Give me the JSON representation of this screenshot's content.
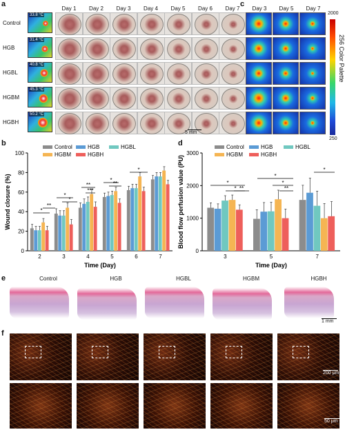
{
  "panels": {
    "a": "a",
    "b": "b",
    "c": "c",
    "d": "d",
    "e": "e",
    "f": "f"
  },
  "groups": [
    "Control",
    "HGB",
    "HGBL",
    "HGBM",
    "HGBH"
  ],
  "temps": [
    "33.8 °C",
    "31.4 °C",
    "40.8 °C",
    "45.3 °C",
    "50.2 °C"
  ],
  "days": [
    "Day 1",
    "Day 2",
    "Day 3",
    "Day 4",
    "Day 5",
    "Day 6",
    "Day 7"
  ],
  "ldpi_days": [
    "Day 3",
    "Day 5",
    "Day 7"
  ],
  "palette": {
    "label": "256 Color Palette",
    "max": "2000",
    "min": "250"
  },
  "scale_a": "5 mm",
  "scale_e": "1 mm",
  "scale_f1": "200 μm",
  "scale_f2": "50 μm",
  "colors": {
    "Control": "#8c8c8c",
    "HGB": "#5b9bd5",
    "HGBL": "#70c8c0",
    "HGBM": "#f5b553",
    "HGBH": "#ee5f5b"
  },
  "chart_data": [
    {
      "type": "bar",
      "ylabel": "Wound closure (%)",
      "xlabel": "Time (Day)",
      "categories": [
        "2",
        "3",
        "4",
        "5",
        "6",
        "7"
      ],
      "ylim": [
        0,
        100
      ],
      "yticks": [
        0,
        20,
        40,
        60,
        80,
        100
      ],
      "series": [
        {
          "name": "Control",
          "values": [
            23,
            38,
            44,
            55,
            62,
            73
          ]
        },
        {
          "name": "HGB",
          "values": [
            21,
            36,
            48,
            56,
            64,
            76
          ]
        },
        {
          "name": "HGBL",
          "values": [
            21,
            36,
            50,
            57,
            64,
            76
          ]
        },
        {
          "name": "HGBM",
          "values": [
            29,
            44,
            58,
            61,
            76,
            82
          ]
        },
        {
          "name": "HGBH",
          "values": [
            21,
            27,
            45,
            49,
            61,
            68
          ]
        }
      ],
      "errors": [
        4,
        5,
        5,
        4,
        4,
        4
      ],
      "significance": [
        "*",
        "**",
        "*",
        "*",
        "**",
        "***",
        "*",
        "**",
        "*"
      ]
    },
    {
      "type": "bar",
      "ylabel": "Blood flow perfusion value (PU)",
      "xlabel": "Time (Day)",
      "categories": [
        "3",
        "5",
        "7"
      ],
      "ylim": [
        0,
        3000
      ],
      "yticks": [
        0,
        1000,
        2000,
        3000
      ],
      "series": [
        {
          "name": "Control",
          "values": [
            1320,
            980,
            1560
          ]
        },
        {
          "name": "HGB",
          "values": [
            1290,
            1200,
            1780
          ]
        },
        {
          "name": "HGBL",
          "values": [
            1540,
            1210,
            1380
          ]
        },
        {
          "name": "HGBM",
          "values": [
            1560,
            1580,
            1000
          ]
        },
        {
          "name": "HGBH",
          "values": [
            1260,
            1000,
            1060
          ]
        }
      ],
      "errors": [
        150,
        280,
        450
      ],
      "significance": [
        "*",
        "*",
        "**",
        "*",
        "*",
        "**",
        "*"
      ]
    }
  ]
}
